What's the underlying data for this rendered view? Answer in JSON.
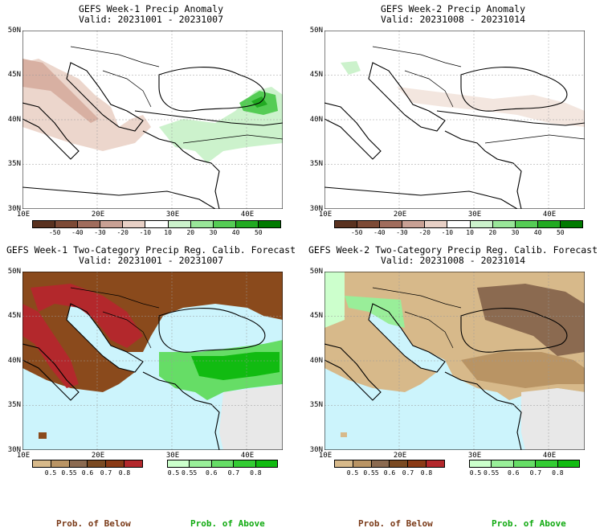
{
  "panels": [
    {
      "title1": "GEFS Week-1 Precip Anomaly",
      "title2": "Valid: 20231001 - 20231007"
    },
    {
      "title1": "GEFS Week-2 Precip Anomaly",
      "title2": "Valid: 20231008 - 20231014"
    },
    {
      "title1": "GEFS Week-1 Two-Category Precip Reg. Calib. Forecast",
      "title2": "Valid: 20231001 - 20231007"
    },
    {
      "title1": "GEFS Week-2 Two-Category Precip Reg. Calib. Forecast",
      "title2": "Valid: 20231008 - 20231014"
    }
  ],
  "lat_labels": [
    "50N",
    "45N",
    "40N",
    "35N",
    "30N"
  ],
  "lon_labels": [
    "10E",
    "20E",
    "30E",
    "40E"
  ],
  "anomaly_colorbar": {
    "labels": [
      "-50",
      "-40",
      "-30",
      "-20",
      "-10",
      "10",
      "20",
      "30",
      "40",
      "50"
    ],
    "colors": [
      "#5a3220",
      "#7d4a36",
      "#a06c5c",
      "#c8a094",
      "#e8d0c6",
      "#ffffff",
      "#ccf2cc",
      "#99e699",
      "#55cc55",
      "#22aa22",
      "#007a00"
    ]
  },
  "below_colorbar": {
    "labels": [
      "0.5",
      "0.55",
      "0.6",
      "0.7",
      "0.8"
    ],
    "colors": [
      "#d7b98a",
      "#b99464",
      "#8b6a50",
      "#7a4a22",
      "#8a3a16",
      "#b3282c"
    ]
  },
  "above_colorbar": {
    "labels": [
      "0.5",
      "0.55",
      "0.6",
      "0.7",
      "0.8"
    ],
    "colors": [
      "#ccffcc",
      "#99ee99",
      "#66dd66",
      "#33cc33",
      "#11bb11"
    ]
  },
  "footer": {
    "below": "Prob. of Below",
    "above": "Prob. of Above"
  },
  "colors": {
    "sea": "#ccf4fc",
    "below_text": "#7a3a18",
    "above_text": "#11aa11",
    "grey_land": "#e8e8e8"
  }
}
